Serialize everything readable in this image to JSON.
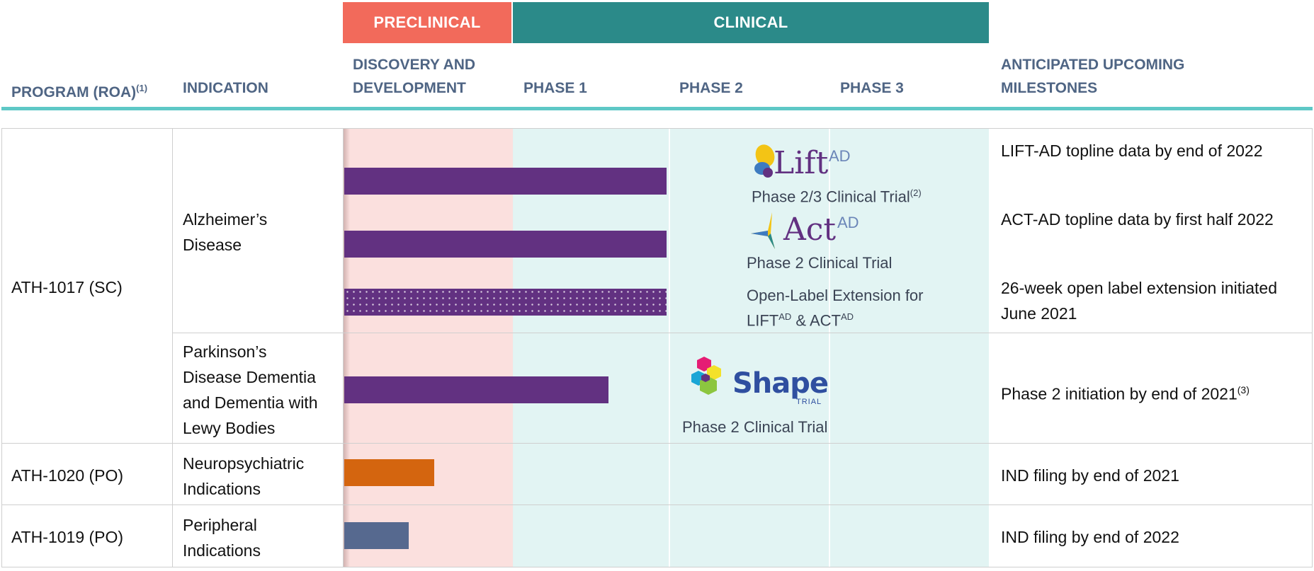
{
  "stages": {
    "preclinical": "PRECLINICAL",
    "clinical": "CLINICAL"
  },
  "headers": {
    "program": "PROGRAM (ROA)",
    "program_sup": "(1)",
    "indication": "INDICATION",
    "discovery_1": "DISCOVERY AND",
    "discovery_2": "DEVELOPMENT",
    "phase1": "PHASE 1",
    "phase2": "PHASE 2",
    "phase3": "PHASE 3",
    "milestones_1": "ANTICIPATED UPCOMING",
    "milestones_2": "MILESTONES"
  },
  "programs": {
    "ath1017": "ATH-1017 (SC)",
    "ath1020": "ATH-1020 (PO)",
    "ath1019": "ATH-1019 (PO)"
  },
  "indications": {
    "alz_1": "Alzheimer’s",
    "alz_2": "Disease",
    "pdd_1": "Parkinson’s",
    "pdd_2": "Disease Dementia",
    "pdd_3": "and Dementia with",
    "pdd_4": "Lewy Bodies",
    "neuro_1": "Neuropsychiatric",
    "neuro_2": "Indications",
    "periph_1": "Peripheral",
    "periph_2": "Indications"
  },
  "trials": {
    "lift_logo": "Lift",
    "lift_logo_sup": "AD",
    "lift_label": "Phase 2/3 Clinical Trial",
    "lift_label_sup": "(2)",
    "act_logo": "Act",
    "act_logo_sup": "AD",
    "act_label": "Phase 2 Clinical Trial",
    "ole_1": "Open-Label Extension for",
    "ole_2a": "LIFT",
    "ole_2a_sup": "AD",
    "ole_2b": " & ACT",
    "ole_2b_sup": "AD",
    "shape_logo": "Shape",
    "shape_logo_sub": "TRIAL",
    "shape_label": "Phase 2 Clinical Trial"
  },
  "milestones": {
    "lift": "LIFT-AD topline data by end of 2022",
    "act": "ACT-AD topline data by first half 2022",
    "ole_1": "26-week open label extension initiated",
    "ole_2": "June 2021",
    "pdd": "Phase 2 initiation by end of 2021",
    "pdd_sup": "(3)",
    "ath1020": "IND filing by end of 2021",
    "ath1019": "IND filing by end of 2022"
  },
  "bar_progress": {
    "_unit": "fraction of the Discovery–Phase 3 span",
    "lift_ad": 0.5,
    "act_ad": 0.5,
    "open_label_extension": 0.5,
    "shape": 0.41,
    "ath1020": 0.14,
    "ath1019": 0.1
  },
  "colors": {
    "preclinical": "#f26a5b",
    "clinical": "#2b8a89",
    "header_text": "#4f6584",
    "rule": "#5ec8c6",
    "purple": "#623181",
    "orange": "#d4650f",
    "slate": "#56698f"
  }
}
